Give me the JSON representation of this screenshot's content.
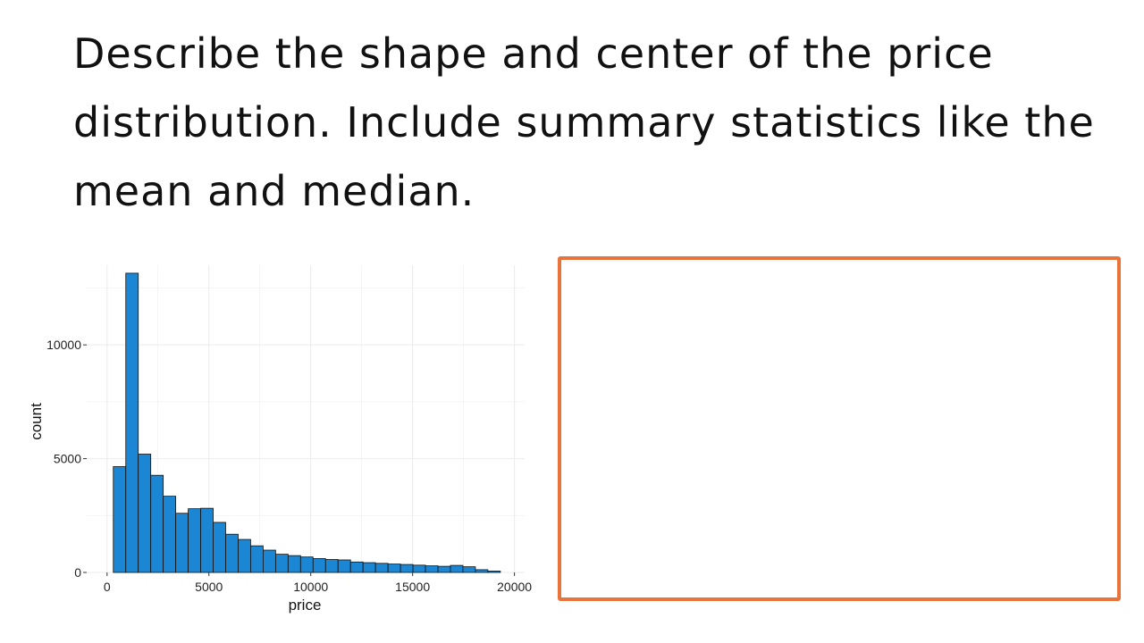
{
  "prompt": {
    "lines": [
      "Describe the shape and center of the price",
      "distribution. Include summary statistics like the",
      "mean and median."
    ]
  },
  "colors": {
    "bar_fill": "#1a86d4",
    "bar_stroke": "#111111",
    "grid": "#ebebeb",
    "answer_border": "#e8743b"
  },
  "chart_data": {
    "type": "bar",
    "xlabel": "price",
    "ylabel": "count",
    "xlim": [
      -1000,
      20500
    ],
    "ylim": [
      0,
      13500
    ],
    "xticks": [
      0,
      5000,
      10000,
      15000,
      20000
    ],
    "yticks": [
      0,
      5000,
      10000
    ],
    "xtick_labels": [
      "0",
      "5000",
      "10000",
      "15000",
      "20000"
    ],
    "ytick_labels": [
      "0",
      "5000",
      "10000"
    ],
    "grid": true,
    "bin_width": 613,
    "bins_start": -307,
    "values": [
      0,
      4650,
      13150,
      5200,
      4270,
      3350,
      2600,
      2800,
      2820,
      2200,
      1680,
      1450,
      1170,
      980,
      800,
      740,
      680,
      610,
      570,
      550,
      460,
      430,
      400,
      370,
      350,
      320,
      290,
      270,
      310,
      250,
      120,
      60
    ]
  },
  "answer_box": {
    "text": ""
  }
}
